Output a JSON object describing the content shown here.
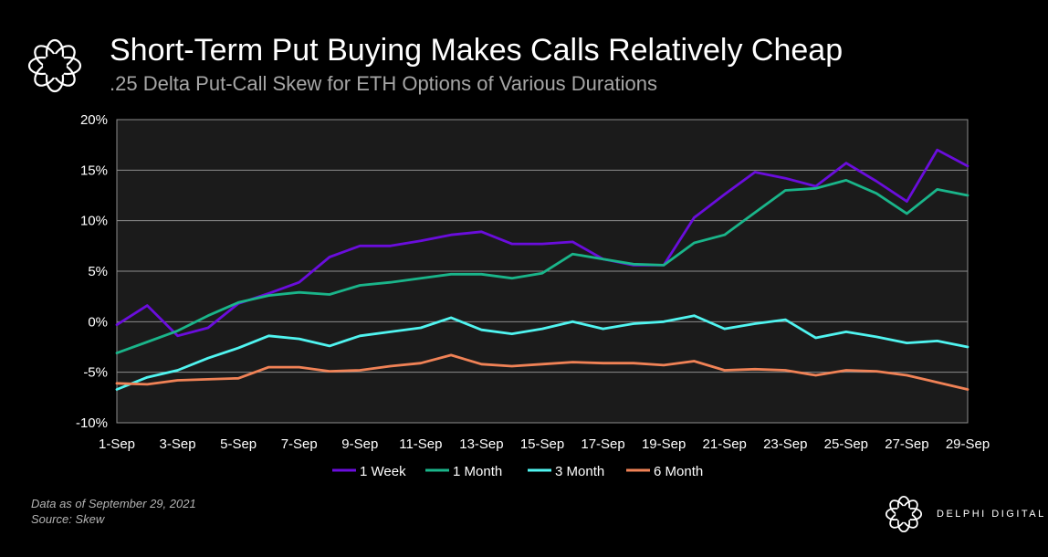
{
  "header": {
    "title": "Short-Term Put Buying Makes Calls Relatively Cheap",
    "subtitle": ".25 Delta Put-Call Skew for ETH Options of Various Durations"
  },
  "footer": {
    "data_note": "Data as of September 29, 2021",
    "source_note": "Source:  Skew",
    "brand_name": "DELPHI DIGITAL"
  },
  "icons": {
    "logo": "flower-ring-icon",
    "brand": "flower-ring-icon"
  },
  "chart_data": {
    "type": "line",
    "title": "Short-Term Put Buying Makes Calls Relatively Cheap",
    "subtitle": ".25 Delta Put-Call Skew for ETH Options of Various Durations",
    "xlabel": "",
    "ylabel": "",
    "ylim": [
      -10,
      20
    ],
    "y_ticks": [
      -10,
      -5,
      0,
      5,
      10,
      15,
      20
    ],
    "y_tick_labels": [
      "-10%",
      "-5%",
      "0%",
      "5%",
      "10%",
      "15%",
      "20%"
    ],
    "x_tick_labels": [
      "1-Sep",
      "3-Sep",
      "5-Sep",
      "7-Sep",
      "9-Sep",
      "11-Sep",
      "13-Sep",
      "15-Sep",
      "17-Sep",
      "19-Sep",
      "21-Sep",
      "23-Sep",
      "25-Sep",
      "27-Sep",
      "29-Sep"
    ],
    "x": [
      1,
      2,
      3,
      4,
      5,
      6,
      7,
      8,
      9,
      10,
      11,
      12,
      13,
      14,
      15,
      16,
      17,
      18,
      19,
      20,
      21,
      22,
      23,
      24,
      25,
      26,
      27,
      28,
      29
    ],
    "grid": true,
    "legend_position": "bottom",
    "series": [
      {
        "name": "1 Week",
        "color": "#6a0ddc",
        "values": [
          -0.3,
          1.6,
          -1.4,
          -0.6,
          1.8,
          2.8,
          3.9,
          6.4,
          7.5,
          7.5,
          8.0,
          8.6,
          8.9,
          7.7,
          7.7,
          7.9,
          6.2,
          5.6,
          5.6,
          10.3,
          12.6,
          14.8,
          14.2,
          13.4,
          15.7,
          13.9,
          11.9,
          17.0,
          15.4
        ]
      },
      {
        "name": "1 Month",
        "color": "#1ab58a",
        "values": [
          -3.1,
          -2.0,
          -0.9,
          0.6,
          1.9,
          2.6,
          2.9,
          2.7,
          3.6,
          3.9,
          4.3,
          4.7,
          4.7,
          4.3,
          4.8,
          6.7,
          6.2,
          5.7,
          5.6,
          7.8,
          8.6,
          10.8,
          13.0,
          13.2,
          14.0,
          12.7,
          10.7,
          13.1,
          12.5
        ]
      },
      {
        "name": "3 Month",
        "color": "#50f4f0",
        "values": [
          -6.7,
          -5.5,
          -4.8,
          -3.6,
          -2.6,
          -1.4,
          -1.7,
          -2.4,
          -1.4,
          -1.0,
          -0.6,
          0.4,
          -0.8,
          -1.2,
          -0.7,
          0.0,
          -0.7,
          -0.2,
          0.0,
          0.6,
          -0.7,
          -0.2,
          0.2,
          -1.6,
          -1.0,
          -1.5,
          -2.1,
          -1.9,
          -2.5
        ]
      },
      {
        "name": "6 Month",
        "color": "#f08256",
        "values": [
          -6.1,
          -6.2,
          -5.8,
          -5.7,
          -5.6,
          -4.5,
          -4.5,
          -4.9,
          -4.8,
          -4.4,
          -4.1,
          -3.3,
          -4.2,
          -4.4,
          -4.2,
          -4.0,
          -4.1,
          -4.1,
          -4.3,
          -3.9,
          -4.8,
          -4.7,
          -4.8,
          -5.3,
          -4.8,
          -4.9,
          -5.3,
          -6.0,
          -6.7
        ]
      }
    ]
  }
}
